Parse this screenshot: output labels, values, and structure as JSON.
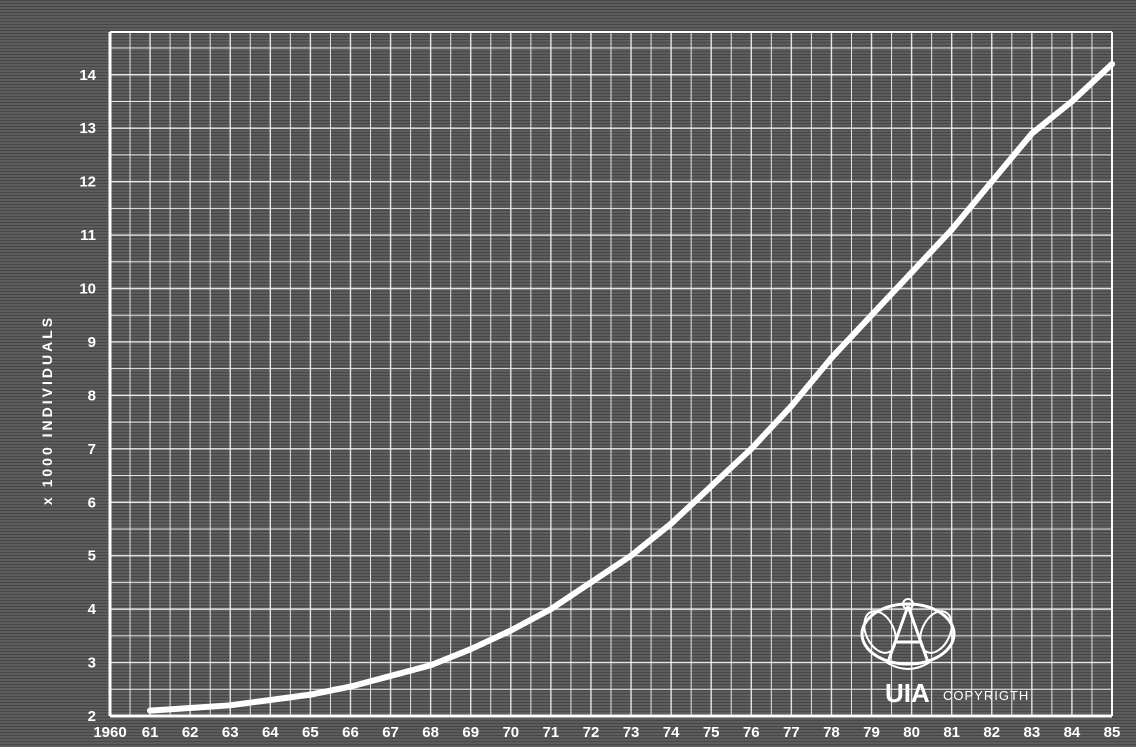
{
  "chart_data": {
    "type": "line",
    "ylabel": "x 1000 INDIVIDUALS",
    "x": [
      1961,
      1962,
      1963,
      1964,
      1965,
      1966,
      1967,
      1968,
      1969,
      1970,
      1971,
      1972,
      1973,
      1974,
      1975,
      1976,
      1977,
      1978,
      1979,
      1980,
      1981,
      1982,
      1983,
      1984,
      1985
    ],
    "series": [
      {
        "values": [
          2.1,
          2.15,
          2.2,
          2.3,
          2.4,
          2.55,
          2.75,
          2.95,
          3.25,
          3.6,
          4.0,
          4.5,
          5.0,
          5.6,
          6.3,
          7.0,
          7.8,
          8.7,
          9.5,
          10.3,
          11.1,
          12.0,
          12.9,
          13.5,
          14.2
        ]
      }
    ],
    "x_tick_labels": [
      "1960",
      "61",
      "62",
      "63",
      "64",
      "65",
      "66",
      "67",
      "68",
      "69",
      "70",
      "71",
      "72",
      "73",
      "74",
      "75",
      "76",
      "77",
      "78",
      "79",
      "80",
      "81",
      "82",
      "83",
      "84",
      "85"
    ],
    "y_tick_labels": [
      "2",
      "3",
      "4",
      "5",
      "6",
      "7",
      "8",
      "9",
      "10",
      "11",
      "12",
      "13",
      "14"
    ],
    "xlim": [
      1960,
      1985
    ],
    "ylim": [
      2,
      14.8
    ],
    "grid": true,
    "colors": {
      "background": "#5a5a5a",
      "grid": "#ffffff",
      "line": "#ffffff"
    }
  },
  "logo": {
    "text": "UIA",
    "caption": "COPYRIGTH"
  }
}
